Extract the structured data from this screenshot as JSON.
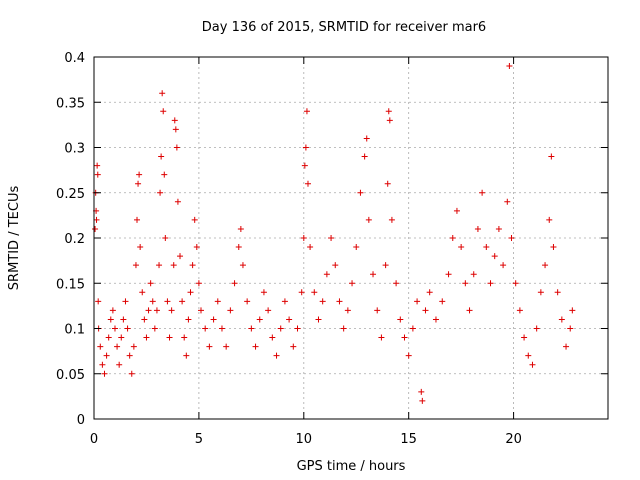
{
  "chart_data": {
    "type": "scatter",
    "title": "Day 136 of 2015, SRMTID for receiver mar6",
    "xlabel": "GPS time / hours",
    "ylabel": "SRMTID / TECUs",
    "xlim": [
      0,
      24.5
    ],
    "ylim": [
      0,
      0.4
    ],
    "xticks": [
      0,
      5,
      10,
      15,
      20
    ],
    "xtick_labels": [
      "0",
      "5",
      "10",
      "15",
      "20"
    ],
    "yticks": [
      0,
      0.05,
      0.1,
      0.15,
      0.2,
      0.25,
      0.3,
      0.35,
      0.4
    ],
    "ytick_labels": [
      "0",
      "0.05",
      "0.1",
      "0.15",
      "0.2",
      "0.25",
      "0.3",
      "0.35",
      "0.4"
    ],
    "grid": true,
    "marker": "+",
    "color": "#dd0000",
    "series": [
      {
        "name": "SRMTID",
        "points": [
          [
            0.05,
            0.21
          ],
          [
            0.08,
            0.25
          ],
          [
            0.1,
            0.23
          ],
          [
            0.12,
            0.22
          ],
          [
            0.15,
            0.28
          ],
          [
            0.18,
            0.27
          ],
          [
            0.2,
            0.13
          ],
          [
            0.22,
            0.1
          ],
          [
            0.3,
            0.08
          ],
          [
            0.4,
            0.06
          ],
          [
            0.5,
            0.05
          ],
          [
            0.6,
            0.07
          ],
          [
            0.7,
            0.09
          ],
          [
            0.8,
            0.11
          ],
          [
            0.9,
            0.12
          ],
          [
            1.0,
            0.1
          ],
          [
            1.1,
            0.08
          ],
          [
            1.2,
            0.06
          ],
          [
            1.3,
            0.09
          ],
          [
            1.4,
            0.11
          ],
          [
            1.5,
            0.13
          ],
          [
            1.6,
            0.1
          ],
          [
            1.7,
            0.07
          ],
          [
            1.8,
            0.05
          ],
          [
            1.9,
            0.08
          ],
          [
            2.0,
            0.17
          ],
          [
            2.05,
            0.22
          ],
          [
            2.1,
            0.26
          ],
          [
            2.15,
            0.27
          ],
          [
            2.2,
            0.19
          ],
          [
            2.3,
            0.14
          ],
          [
            2.4,
            0.11
          ],
          [
            2.5,
            0.09
          ],
          [
            2.6,
            0.12
          ],
          [
            2.7,
            0.15
          ],
          [
            2.8,
            0.13
          ],
          [
            2.9,
            0.1
          ],
          [
            3.0,
            0.12
          ],
          [
            3.1,
            0.17
          ],
          [
            3.15,
            0.25
          ],
          [
            3.2,
            0.29
          ],
          [
            3.25,
            0.36
          ],
          [
            3.3,
            0.34
          ],
          [
            3.35,
            0.27
          ],
          [
            3.4,
            0.2
          ],
          [
            3.5,
            0.13
          ],
          [
            3.6,
            0.09
          ],
          [
            3.7,
            0.12
          ],
          [
            3.8,
            0.17
          ],
          [
            3.85,
            0.33
          ],
          [
            3.9,
            0.32
          ],
          [
            3.95,
            0.3
          ],
          [
            4.0,
            0.24
          ],
          [
            4.1,
            0.18
          ],
          [
            4.2,
            0.13
          ],
          [
            4.3,
            0.09
          ],
          [
            4.4,
            0.07
          ],
          [
            4.5,
            0.11
          ],
          [
            4.6,
            0.14
          ],
          [
            4.7,
            0.17
          ],
          [
            4.8,
            0.22
          ],
          [
            4.9,
            0.19
          ],
          [
            5.0,
            0.15
          ],
          [
            5.1,
            0.12
          ],
          [
            5.3,
            0.1
          ],
          [
            5.5,
            0.08
          ],
          [
            5.7,
            0.11
          ],
          [
            5.9,
            0.13
          ],
          [
            6.1,
            0.1
          ],
          [
            6.3,
            0.08
          ],
          [
            6.5,
            0.12
          ],
          [
            6.7,
            0.15
          ],
          [
            6.9,
            0.19
          ],
          [
            7.0,
            0.21
          ],
          [
            7.1,
            0.17
          ],
          [
            7.3,
            0.13
          ],
          [
            7.5,
            0.1
          ],
          [
            7.7,
            0.08
          ],
          [
            7.9,
            0.11
          ],
          [
            8.1,
            0.14
          ],
          [
            8.3,
            0.12
          ],
          [
            8.5,
            0.09
          ],
          [
            8.7,
            0.07
          ],
          [
            8.9,
            0.1
          ],
          [
            9.1,
            0.13
          ],
          [
            9.3,
            0.11
          ],
          [
            9.5,
            0.08
          ],
          [
            9.7,
            0.1
          ],
          [
            9.9,
            0.14
          ],
          [
            10.0,
            0.2
          ],
          [
            10.05,
            0.28
          ],
          [
            10.1,
            0.3
          ],
          [
            10.15,
            0.34
          ],
          [
            10.2,
            0.26
          ],
          [
            10.3,
            0.19
          ],
          [
            10.5,
            0.14
          ],
          [
            10.7,
            0.11
          ],
          [
            10.9,
            0.13
          ],
          [
            11.1,
            0.16
          ],
          [
            11.3,
            0.2
          ],
          [
            11.5,
            0.17
          ],
          [
            11.7,
            0.13
          ],
          [
            11.9,
            0.1
          ],
          [
            12.1,
            0.12
          ],
          [
            12.3,
            0.15
          ],
          [
            12.5,
            0.19
          ],
          [
            12.7,
            0.25
          ],
          [
            12.9,
            0.29
          ],
          [
            13.0,
            0.31
          ],
          [
            13.1,
            0.22
          ],
          [
            13.3,
            0.16
          ],
          [
            13.5,
            0.12
          ],
          [
            13.7,
            0.09
          ],
          [
            13.9,
            0.17
          ],
          [
            14.0,
            0.26
          ],
          [
            14.05,
            0.34
          ],
          [
            14.1,
            0.33
          ],
          [
            14.2,
            0.22
          ],
          [
            14.4,
            0.15
          ],
          [
            14.6,
            0.11
          ],
          [
            14.8,
            0.09
          ],
          [
            15.0,
            0.07
          ],
          [
            15.2,
            0.1
          ],
          [
            15.4,
            0.13
          ],
          [
            15.6,
            0.03
          ],
          [
            15.65,
            0.02
          ],
          [
            15.8,
            0.12
          ],
          [
            16.0,
            0.14
          ],
          [
            16.3,
            0.11
          ],
          [
            16.6,
            0.13
          ],
          [
            16.9,
            0.16
          ],
          [
            17.1,
            0.2
          ],
          [
            17.3,
            0.23
          ],
          [
            17.5,
            0.19
          ],
          [
            17.7,
            0.15
          ],
          [
            17.9,
            0.12
          ],
          [
            18.1,
            0.16
          ],
          [
            18.3,
            0.21
          ],
          [
            18.5,
            0.25
          ],
          [
            18.7,
            0.19
          ],
          [
            18.9,
            0.15
          ],
          [
            19.1,
            0.18
          ],
          [
            19.3,
            0.21
          ],
          [
            19.5,
            0.17
          ],
          [
            19.7,
            0.24
          ],
          [
            19.8,
            0.39
          ],
          [
            19.9,
            0.2
          ],
          [
            20.1,
            0.15
          ],
          [
            20.3,
            0.12
          ],
          [
            20.5,
            0.09
          ],
          [
            20.7,
            0.07
          ],
          [
            20.9,
            0.06
          ],
          [
            21.1,
            0.1
          ],
          [
            21.3,
            0.14
          ],
          [
            21.5,
            0.17
          ],
          [
            21.7,
            0.22
          ],
          [
            21.8,
            0.29
          ],
          [
            21.9,
            0.19
          ],
          [
            22.1,
            0.14
          ],
          [
            22.3,
            0.11
          ],
          [
            22.5,
            0.08
          ],
          [
            22.7,
            0.1
          ],
          [
            22.8,
            0.12
          ]
        ]
      }
    ]
  }
}
